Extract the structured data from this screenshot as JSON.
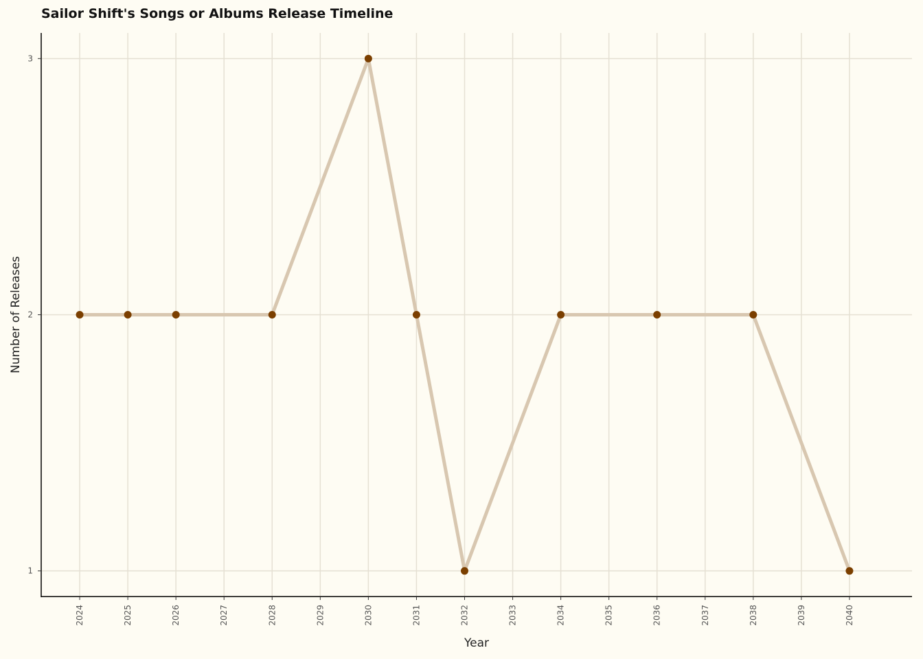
{
  "chart_data": {
    "type": "line",
    "title": "Sailor Shift's Songs or Albums Release Timeline",
    "xlabel": "Year",
    "ylabel": "Number of Releases",
    "x": [
      2024,
      2025,
      2026,
      2028,
      2030,
      2031,
      2032,
      2034,
      2036,
      2038,
      2040
    ],
    "y": [
      2,
      2,
      2,
      2,
      3,
      2,
      1,
      2,
      2,
      2,
      1
    ],
    "x_ticks": [
      "2024",
      "2025",
      "2026",
      "2027",
      "2028",
      "2029",
      "2030",
      "2031",
      "2032",
      "2033",
      "2034",
      "2035",
      "2036",
      "2037",
      "2038",
      "2039",
      "2040"
    ],
    "y_ticks": [
      "1",
      "2",
      "3"
    ],
    "xlim": [
      2023.2,
      2041.3
    ],
    "ylim": [
      0.9,
      3.1
    ],
    "grid": true,
    "legend": "none",
    "colors": {
      "background": "#fefcf3",
      "grid": "#e5e0d3",
      "line": "#d8c7b0",
      "point": "#7b3f00",
      "axis": "#000000"
    }
  }
}
